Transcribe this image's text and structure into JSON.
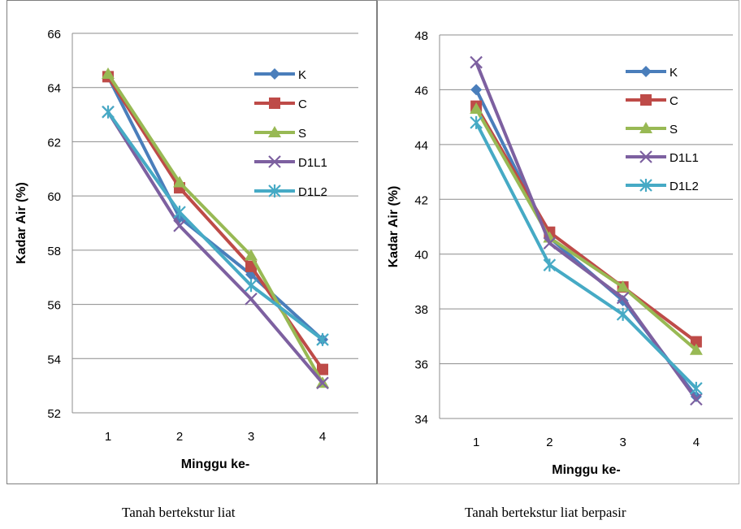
{
  "charts": [
    {
      "caption": "Tanah bertekstur liat",
      "chart_data": {
        "type": "line",
        "xlabel": "Minggu ke-",
        "ylabel": "Kadar Air (%)",
        "categories": [
          "1",
          "2",
          "3",
          "4"
        ],
        "ylim": [
          52,
          66
        ],
        "yticks": [
          "52",
          "54",
          "56",
          "58",
          "60",
          "62",
          "64",
          "66"
        ],
        "grid": true,
        "legend_position": "right",
        "series": [
          {
            "name": "K",
            "color": "#4a7ebb",
            "marker": "diamond",
            "values": [
              64.4,
              59.2,
              57.1,
              54.7
            ]
          },
          {
            "name": "C",
            "color": "#be4b48",
            "marker": "square",
            "values": [
              64.4,
              60.3,
              57.4,
              53.6
            ]
          },
          {
            "name": "S",
            "color": "#98b954",
            "marker": "triangle",
            "values": [
              64.5,
              60.5,
              57.8,
              53.1
            ]
          },
          {
            "name": "D1L1",
            "color": "#7d60a0",
            "marker": "x",
            "values": [
              63.1,
              58.9,
              56.2,
              53.1
            ]
          },
          {
            "name": "D1L2",
            "color": "#46aac5",
            "marker": "star",
            "values": [
              63.1,
              59.4,
              56.7,
              54.7
            ]
          }
        ]
      }
    },
    {
      "caption": "Tanah bertekstur liat berpasir",
      "chart_data": {
        "type": "line",
        "xlabel": "Minggu ke-",
        "ylabel": "Kadar Air (%)",
        "categories": [
          "1",
          "2",
          "3",
          "4"
        ],
        "ylim": [
          34,
          48
        ],
        "yticks": [
          "34",
          "36",
          "38",
          "40",
          "42",
          "44",
          "46",
          "48"
        ],
        "grid": true,
        "legend_position": "right",
        "series": [
          {
            "name": "K",
            "color": "#4a7ebb",
            "marker": "diamond",
            "values": [
              46.0,
              40.6,
              38.3,
              34.8
            ]
          },
          {
            "name": "C",
            "color": "#be4b48",
            "marker": "square",
            "values": [
              45.4,
              40.8,
              38.8,
              36.8
            ]
          },
          {
            "name": "S",
            "color": "#98b954",
            "marker": "triangle",
            "values": [
              45.3,
              40.6,
              38.8,
              36.5
            ]
          },
          {
            "name": "D1L1",
            "color": "#7d60a0",
            "marker": "x",
            "values": [
              47.0,
              40.4,
              38.4,
              34.7
            ]
          },
          {
            "name": "D1L2",
            "color": "#46aac5",
            "marker": "star",
            "values": [
              44.8,
              39.6,
              37.8,
              35.1
            ]
          }
        ]
      }
    }
  ]
}
